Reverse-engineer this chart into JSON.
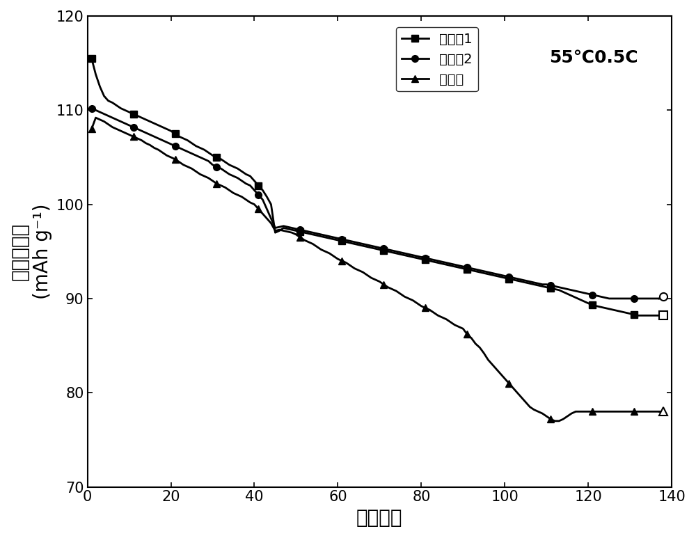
{
  "title_annotation": "55℃0.5C",
  "xlabel": "循环次数",
  "ylabel_line1": "放电比容量",
  "ylabel_line2": "(mAh g⁻¹)",
  "xlim": [
    0,
    140
  ],
  "ylim": [
    70,
    120
  ],
  "xticks": [
    0,
    20,
    40,
    60,
    80,
    100,
    120,
    140
  ],
  "yticks": [
    70,
    80,
    90,
    100,
    110,
    120
  ],
  "series1_label": "实施例1",
  "series2_label": "实施例2",
  "series3_label": "对比样",
  "series1_x": [
    1,
    2,
    3,
    4,
    5,
    6,
    7,
    8,
    9,
    10,
    11,
    12,
    13,
    14,
    15,
    16,
    17,
    18,
    19,
    20,
    21,
    22,
    23,
    24,
    25,
    26,
    27,
    28,
    29,
    30,
    31,
    32,
    33,
    34,
    35,
    36,
    37,
    38,
    39,
    40,
    41,
    42,
    43,
    44,
    45,
    46,
    47,
    48,
    49,
    50,
    51,
    52,
    53,
    54,
    55,
    56,
    57,
    58,
    59,
    60,
    61,
    62,
    63,
    64,
    65,
    66,
    67,
    68,
    69,
    70,
    71,
    72,
    73,
    74,
    75,
    76,
    77,
    78,
    79,
    80,
    81,
    82,
    83,
    84,
    85,
    86,
    87,
    88,
    89,
    90,
    91,
    92,
    93,
    94,
    95,
    96,
    97,
    98,
    99,
    100,
    101,
    102,
    103,
    104,
    105,
    106,
    107,
    108,
    109,
    110,
    111,
    112,
    113,
    114,
    115,
    116,
    117,
    118,
    119,
    120,
    121,
    122,
    123,
    124,
    125,
    126,
    127,
    128,
    129,
    130,
    131,
    132,
    133,
    134,
    135,
    136,
    137,
    138
  ],
  "series1_y": [
    115.5,
    113.8,
    112.5,
    111.5,
    111.0,
    110.8,
    110.5,
    110.2,
    110.0,
    109.8,
    109.6,
    109.4,
    109.2,
    109.0,
    108.8,
    108.6,
    108.4,
    108.2,
    108.0,
    107.8,
    107.5,
    107.2,
    107.0,
    106.8,
    106.5,
    106.2,
    106.0,
    105.8,
    105.5,
    105.2,
    105.0,
    104.8,
    104.5,
    104.2,
    104.0,
    103.8,
    103.5,
    103.2,
    103.0,
    102.5,
    102.0,
    101.5,
    100.8,
    100.0,
    97.0,
    97.2,
    97.5,
    97.4,
    97.3,
    97.2,
    97.1,
    97.0,
    96.9,
    96.8,
    96.7,
    96.6,
    96.5,
    96.4,
    96.3,
    96.2,
    96.1,
    96.0,
    95.9,
    95.8,
    95.7,
    95.6,
    95.5,
    95.4,
    95.3,
    95.2,
    95.1,
    95.0,
    94.9,
    94.8,
    94.7,
    94.6,
    94.5,
    94.4,
    94.3,
    94.2,
    94.1,
    94.0,
    93.9,
    93.8,
    93.7,
    93.6,
    93.5,
    93.4,
    93.3,
    93.2,
    93.1,
    93.0,
    92.9,
    92.8,
    92.7,
    92.6,
    92.5,
    92.4,
    92.3,
    92.2,
    92.1,
    92.0,
    91.9,
    91.8,
    91.7,
    91.6,
    91.5,
    91.4,
    91.3,
    91.2,
    91.1,
    91.0,
    90.9,
    90.7,
    90.5,
    90.3,
    90.1,
    89.9,
    89.7,
    89.5,
    89.3,
    89.2,
    89.1,
    89.0,
    88.9,
    88.8,
    88.7,
    88.6,
    88.5,
    88.4,
    88.3,
    88.2,
    88.2,
    88.2,
    88.2,
    88.2,
    88.2,
    88.2
  ],
  "series2_x": [
    1,
    2,
    3,
    4,
    5,
    6,
    7,
    8,
    9,
    10,
    11,
    12,
    13,
    14,
    15,
    16,
    17,
    18,
    19,
    20,
    21,
    22,
    23,
    24,
    25,
    26,
    27,
    28,
    29,
    30,
    31,
    32,
    33,
    34,
    35,
    36,
    37,
    38,
    39,
    40,
    41,
    42,
    43,
    44,
    45,
    46,
    47,
    48,
    49,
    50,
    51,
    52,
    53,
    54,
    55,
    56,
    57,
    58,
    59,
    60,
    61,
    62,
    63,
    64,
    65,
    66,
    67,
    68,
    69,
    70,
    71,
    72,
    73,
    74,
    75,
    76,
    77,
    78,
    79,
    80,
    81,
    82,
    83,
    84,
    85,
    86,
    87,
    88,
    89,
    90,
    91,
    92,
    93,
    94,
    95,
    96,
    97,
    98,
    99,
    100,
    101,
    102,
    103,
    104,
    105,
    106,
    107,
    108,
    109,
    110,
    111,
    112,
    113,
    114,
    115,
    116,
    117,
    118,
    119,
    120,
    121,
    122,
    123,
    124,
    125,
    126,
    127,
    128,
    129,
    130,
    131,
    132,
    133,
    134,
    135,
    136,
    137,
    138
  ],
  "series2_y": [
    110.2,
    110.0,
    109.8,
    109.6,
    109.4,
    109.2,
    109.0,
    108.8,
    108.6,
    108.4,
    108.2,
    108.0,
    107.8,
    107.6,
    107.4,
    107.2,
    107.0,
    106.8,
    106.6,
    106.4,
    106.2,
    106.0,
    105.8,
    105.6,
    105.4,
    105.2,
    105.0,
    104.8,
    104.6,
    104.2,
    104.0,
    103.8,
    103.5,
    103.2,
    103.0,
    102.8,
    102.5,
    102.2,
    102.0,
    101.5,
    101.0,
    100.5,
    99.5,
    98.5,
    97.5,
    97.6,
    97.7,
    97.6,
    97.5,
    97.4,
    97.3,
    97.2,
    97.1,
    97.0,
    96.9,
    96.8,
    96.7,
    96.6,
    96.5,
    96.4,
    96.3,
    96.2,
    96.1,
    96.0,
    95.9,
    95.8,
    95.7,
    95.6,
    95.5,
    95.4,
    95.3,
    95.2,
    95.1,
    95.0,
    94.9,
    94.8,
    94.7,
    94.6,
    94.5,
    94.4,
    94.3,
    94.2,
    94.1,
    94.0,
    93.9,
    93.8,
    93.7,
    93.6,
    93.5,
    93.4,
    93.3,
    93.2,
    93.1,
    93.0,
    92.9,
    92.8,
    92.7,
    92.6,
    92.5,
    92.4,
    92.3,
    92.2,
    92.1,
    92.0,
    91.9,
    91.8,
    91.7,
    91.6,
    91.5,
    91.5,
    91.4,
    91.3,
    91.2,
    91.1,
    91.0,
    90.9,
    90.8,
    90.7,
    90.6,
    90.5,
    90.4,
    90.3,
    90.2,
    90.1,
    90.0,
    90.0,
    90.0,
    90.0,
    90.0,
    90.0,
    90.0,
    90.0,
    90.0,
    90.0,
    90.0,
    90.0,
    90.0,
    90.2
  ],
  "series3_x": [
    1,
    2,
    3,
    4,
    5,
    6,
    7,
    8,
    9,
    10,
    11,
    12,
    13,
    14,
    15,
    16,
    17,
    18,
    19,
    20,
    21,
    22,
    23,
    24,
    25,
    26,
    27,
    28,
    29,
    30,
    31,
    32,
    33,
    34,
    35,
    36,
    37,
    38,
    39,
    40,
    41,
    42,
    43,
    44,
    45,
    46,
    47,
    48,
    49,
    50,
    51,
    52,
    53,
    54,
    55,
    56,
    57,
    58,
    59,
    60,
    61,
    62,
    63,
    64,
    65,
    66,
    67,
    68,
    69,
    70,
    71,
    72,
    73,
    74,
    75,
    76,
    77,
    78,
    79,
    80,
    81,
    82,
    83,
    84,
    85,
    86,
    87,
    88,
    89,
    90,
    91,
    92,
    93,
    94,
    95,
    96,
    97,
    98,
    99,
    100,
    101,
    102,
    103,
    104,
    105,
    106,
    107,
    108,
    109,
    110,
    111,
    112,
    113,
    114,
    115,
    116,
    117,
    118,
    119,
    120,
    121,
    122,
    123,
    124,
    125,
    126,
    127,
    128,
    129,
    130,
    131,
    132,
    133,
    134,
    135,
    136,
    137,
    138
  ],
  "series3_y": [
    108.0,
    109.2,
    109.0,
    108.8,
    108.5,
    108.2,
    108.0,
    107.8,
    107.6,
    107.4,
    107.2,
    107.0,
    106.8,
    106.5,
    106.3,
    106.0,
    105.8,
    105.5,
    105.2,
    105.0,
    104.8,
    104.5,
    104.2,
    104.0,
    103.8,
    103.5,
    103.2,
    103.0,
    102.8,
    102.5,
    102.2,
    102.0,
    101.8,
    101.5,
    101.2,
    101.0,
    100.8,
    100.5,
    100.2,
    100.0,
    99.5,
    99.0,
    98.5,
    98.0,
    97.2,
    97.3,
    97.2,
    97.1,
    97.0,
    96.8,
    96.5,
    96.2,
    96.0,
    95.8,
    95.5,
    95.2,
    95.0,
    94.8,
    94.5,
    94.2,
    94.0,
    93.8,
    93.5,
    93.2,
    93.0,
    92.8,
    92.5,
    92.2,
    92.0,
    91.8,
    91.5,
    91.2,
    91.0,
    90.8,
    90.5,
    90.2,
    90.0,
    89.8,
    89.5,
    89.2,
    89.0,
    88.8,
    88.5,
    88.2,
    88.0,
    87.8,
    87.5,
    87.2,
    87.0,
    86.8,
    86.2,
    85.8,
    85.2,
    84.8,
    84.2,
    83.5,
    83.0,
    82.5,
    82.0,
    81.5,
    81.0,
    80.5,
    80.0,
    79.5,
    79.0,
    78.5,
    78.2,
    78.0,
    77.8,
    77.5,
    77.2,
    77.0,
    77.0,
    77.2,
    77.5,
    77.8,
    78.0,
    78.0,
    78.0,
    78.0,
    78.0,
    78.0,
    78.0,
    78.0,
    78.0,
    78.0,
    78.0,
    78.0,
    78.0,
    78.0,
    78.0,
    78.0,
    78.0,
    78.0,
    78.0,
    78.0,
    78.0,
    78.0
  ],
  "bg_color": "#ffffff",
  "line_width": 2.0,
  "marker_size": 7,
  "font_size_axis_label": 20,
  "font_size_tick": 15,
  "font_size_legend": 14,
  "font_size_annotation": 18
}
